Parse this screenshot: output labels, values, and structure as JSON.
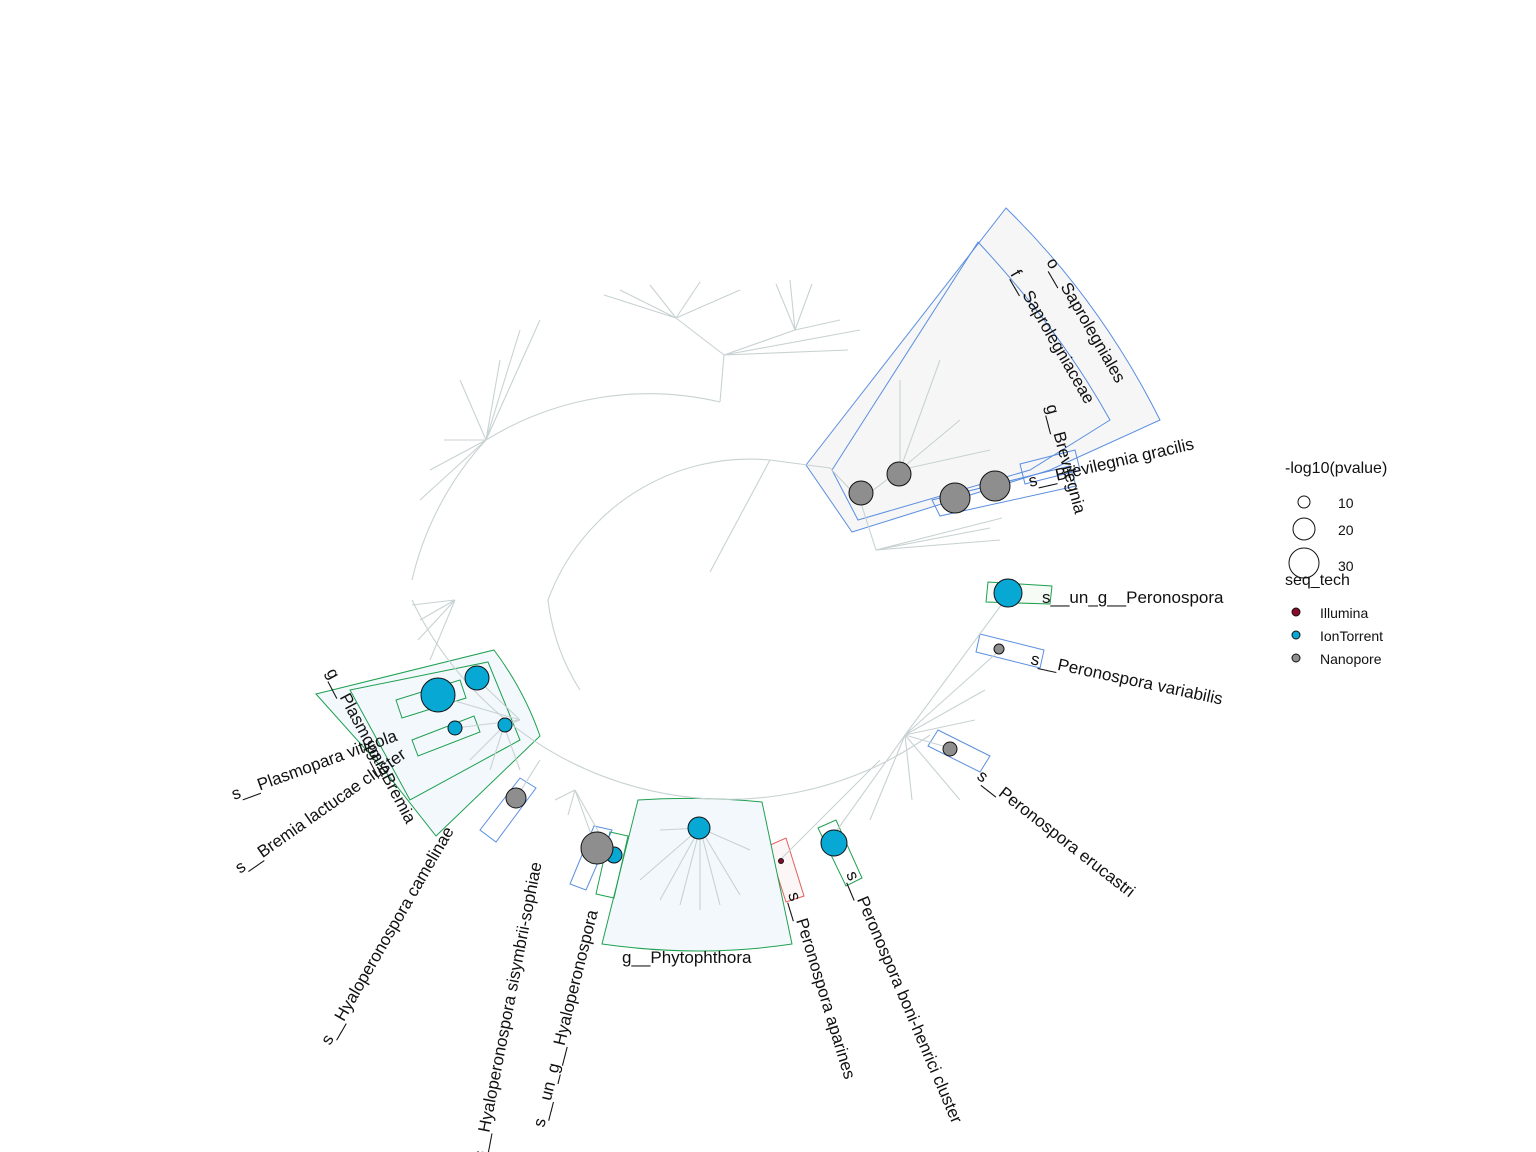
{
  "colors": {
    "tree": "#c8d2d2",
    "clade_blue": "#5b8fe0",
    "clade_green": "#1ea050",
    "clade_red": "#e06060",
    "fill_grey": "#f5f5f5",
    "fill_blue": "#f3f8fc",
    "Illumina": "#8b0a2a",
    "IonTorrent": "#08a8d4",
    "Nanopore": "#8e8e8e"
  },
  "labels": {
    "o_saprolegniales": "o__Saprolegniales",
    "f_saprolegniaceae": "f__Saprolegniaceae",
    "g_brevilegnia": "g__Brevilegnia",
    "s_brevilegnia_gracilis": "s__Brevilegnia gracilis",
    "s_un_g_peronospora": "s__un_g__Peronospora",
    "s_peronospora_variabilis": "s__Peronospora variabilis",
    "s_peronospora_erucastri": "s__Peronospora erucastri",
    "s_peronospora_boni_henrici": "s__Peronospora boni-henrici cluster",
    "s_peronospora_aparines": "s__Peronospora aparines",
    "g_phytophthora": "g__Phytophthora",
    "s_un_g_hyaloperonospora": "s__un_g__Hyaloperonospora",
    "s_hyaloperonospora_sisymbrii": "s__Hyaloperonospora sisymbrii-sophiae",
    "s_hyaloperonospora_camelinae": "s__Hyaloperonospora camelinae",
    "s_bremia_lactucae": "s__Bremia lactucae cluster",
    "s_plasmopara_viticola": "s__Plasmopara viticola",
    "g_plasmopara": "g__Plasmopara",
    "g_bremia": "g__Bremia"
  },
  "legend": {
    "size_title": "-log10(pvalue)",
    "size_values": [
      "10",
      "20",
      "30"
    ],
    "color_title": "seq_tech",
    "color_items": [
      "Illumina",
      "IonTorrent",
      "Nanopore"
    ]
  },
  "markers": [
    {
      "clade": "g__Brevilegnia",
      "tech": "Nanopore",
      "pvalue_log10": 22
    },
    {
      "clade": "g__Brevilegnia",
      "tech": "Nanopore",
      "pvalue_log10": 24
    },
    {
      "clade": "s__Brevilegnia gracilis",
      "tech": "Nanopore",
      "pvalue_log10": 27
    },
    {
      "clade": "s__Brevilegnia gracilis",
      "tech": "Nanopore",
      "pvalue_log10": 27
    },
    {
      "clade": "s__un_g__Peronospora",
      "tech": "IonTorrent",
      "pvalue_log10": 26
    },
    {
      "clade": "s__Peronospora variabilis",
      "tech": "Nanopore",
      "pvalue_log10": 5
    },
    {
      "clade": "s__Peronospora erucastri",
      "tech": "Nanopore",
      "pvalue_log10": 8
    },
    {
      "clade": "s__Peronospora boni-henrici cluster",
      "tech": "IonTorrent",
      "pvalue_log10": 23
    },
    {
      "clade": "s__Peronospora aparines",
      "tech": "Illumina",
      "pvalue_log10": 1
    },
    {
      "clade": "g__Phytophthora",
      "tech": "IonTorrent",
      "pvalue_log10": 18
    },
    {
      "clade": "s__un_g__Hyaloperonospora",
      "tech": "IonTorrent",
      "pvalue_log10": 13
    },
    {
      "clade": "s__Hyaloperonospora sisymbrii-sophiae",
      "tech": "Nanopore",
      "pvalue_log10": 30
    },
    {
      "clade": "s__Hyaloperonospora camelinae",
      "tech": "Nanopore",
      "pvalue_log10": 15
    },
    {
      "clade": "s__Bremia lactucae cluster",
      "tech": "IonTorrent",
      "pvalue_log10": 10
    },
    {
      "clade": "s__Bremia lactucae cluster",
      "tech": "IonTorrent",
      "pvalue_log10": 10
    },
    {
      "clade": "s__Plasmopara viticola",
      "tech": "IonTorrent",
      "pvalue_log10": 36
    },
    {
      "clade": "g__Plasmopara",
      "tech": "IonTorrent",
      "pvalue_log10": 24
    }
  ]
}
